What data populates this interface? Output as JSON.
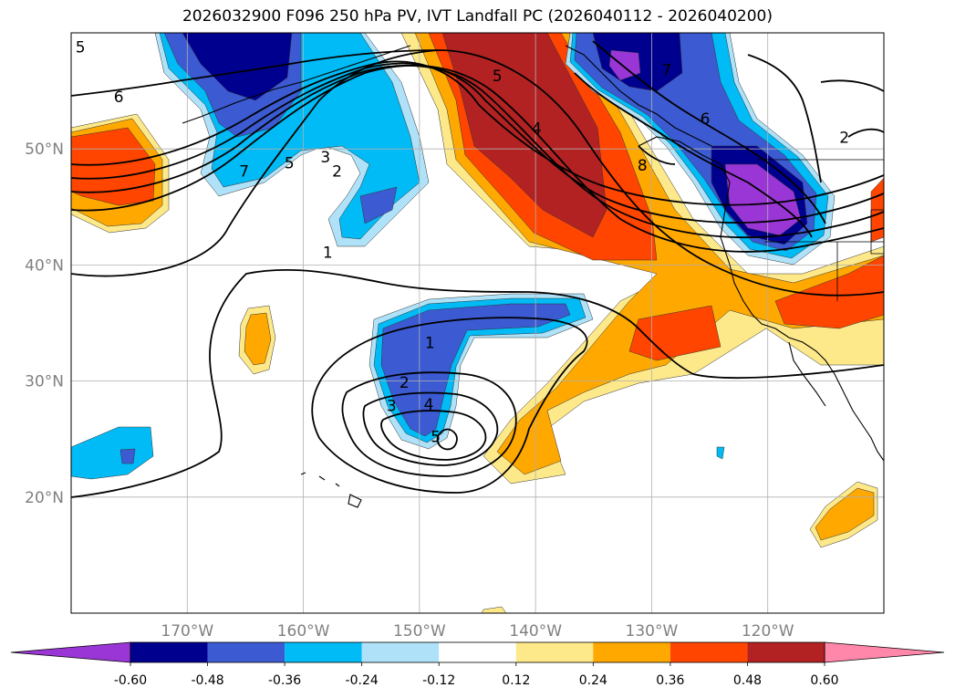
{
  "title": "2026032900 F096 250 hPa PV, IVT Landfall PC (2026040112 - 2026040200)",
  "map": {
    "lon_range": [
      -180,
      -110
    ],
    "lat_range": [
      10,
      60
    ],
    "lon_ticks": [
      {
        "lon": -170,
        "label": "170°W"
      },
      {
        "lon": -160,
        "label": "160°W"
      },
      {
        "lon": -150,
        "label": "150°W"
      },
      {
        "lon": -140,
        "label": "140°W"
      },
      {
        "lon": -130,
        "label": "130°W"
      },
      {
        "lon": -120,
        "label": "120°W"
      }
    ],
    "lat_ticks": [
      {
        "lat": 20,
        "label": "20°N"
      },
      {
        "lat": 30,
        "label": "30°N"
      },
      {
        "lat": 40,
        "label": "40°N"
      },
      {
        "lat": 50,
        "label": "50°N"
      }
    ],
    "grid": true,
    "tick_label_color": "#808080"
  },
  "contour_labels": [
    {
      "text": "5",
      "lon": -179.2,
      "lat": 58.8
    },
    {
      "text": "6",
      "lon": -175.9,
      "lat": 54.5
    },
    {
      "text": "7",
      "lon": -165.1,
      "lat": 48.1
    },
    {
      "text": "5",
      "lon": -161.2,
      "lat": 48.8
    },
    {
      "text": "3",
      "lon": -158.1,
      "lat": 49.3
    },
    {
      "text": "2",
      "lon": -157.1,
      "lat": 48.1
    },
    {
      "text": "1",
      "lon": -157.9,
      "lat": 41.1
    },
    {
      "text": "5",
      "lon": -143.3,
      "lat": 56.3
    },
    {
      "text": "4",
      "lon": -139.9,
      "lat": 51.8
    },
    {
      "text": "1",
      "lon": -149.1,
      "lat": 33.3
    },
    {
      "text": "2",
      "lon": -151.3,
      "lat": 29.9
    },
    {
      "text": "3",
      "lon": -152.4,
      "lat": 27.9
    },
    {
      "text": "4",
      "lon": -149.2,
      "lat": 28.0
    },
    {
      "text": "5",
      "lon": -148.6,
      "lat": 25.2
    },
    {
      "text": "7",
      "lon": -128.7,
      "lat": 56.8
    },
    {
      "text": "6",
      "lon": -125.4,
      "lat": 52.6
    },
    {
      "text": "8",
      "lon": -130.8,
      "lat": 48.6
    },
    {
      "text": "2",
      "lon": -113.4,
      "lat": 51.0
    }
  ],
  "colorbar": {
    "levels": [
      "-0.60",
      "-0.48",
      "-0.36",
      "-0.24",
      "-0.12",
      "0.12",
      "0.24",
      "0.36",
      "0.48",
      "0.60"
    ],
    "colors": [
      "#9a36d6",
      "#00008f",
      "#3c5ad2",
      "#00bbf5",
      "#afe2f8",
      "#ffffff",
      "#fde98a",
      "#ffa800",
      "#ff4500",
      "#b22222",
      "#ff88aa"
    ]
  },
  "shading_colors": {
    "pos1": "#fde98a",
    "pos2": "#ffa800",
    "pos3": "#ff4500",
    "pos4": "#b22222",
    "neg1": "#afe2f8",
    "neg2": "#00bbf5",
    "neg3": "#3c5ad2",
    "neg4": "#00008f",
    "neg5": "#9a36d6"
  }
}
